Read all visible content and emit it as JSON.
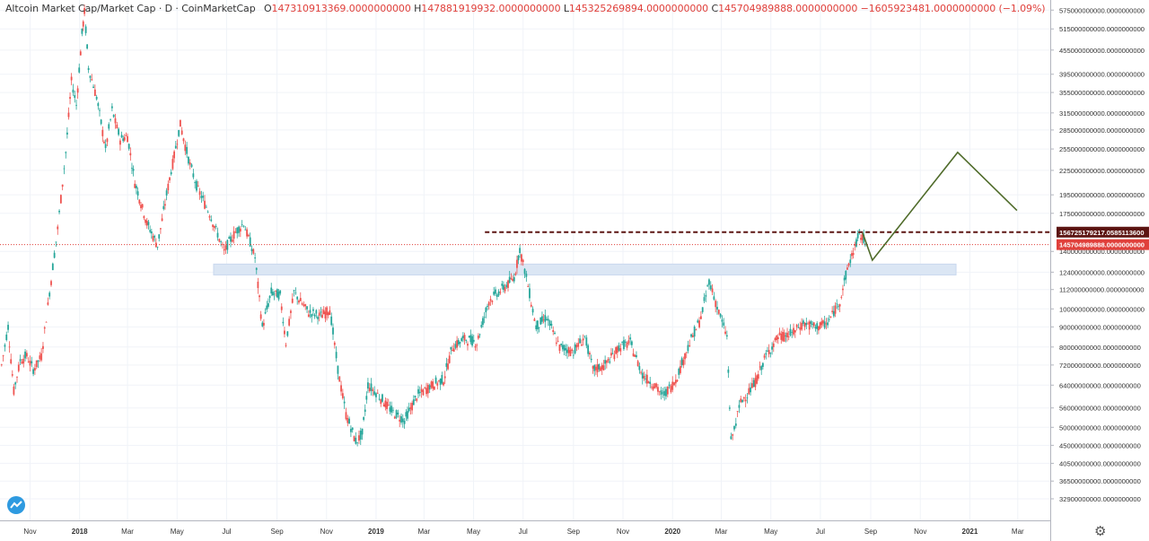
{
  "header": {
    "symbol": "Altcoin Market Cap/Market Cap",
    "interval": "D",
    "source": "CoinMarketCap",
    "open_label": "O",
    "open": "147310913369.0000000000",
    "high_label": "H",
    "high": "147881919932.0000000000",
    "low_label": "L",
    "low": "145325269894.0000000000",
    "close_label": "C",
    "close": "145704989888.0000000000",
    "change": "−1605923481.0000000000 (−1.09%)"
  },
  "colors": {
    "up": "#26a69a",
    "down": "#ef5350",
    "resistance": "#5c1512",
    "current_price": "#e0403b",
    "projection": "#4f6b2a",
    "zone": "#dbe6f4"
  },
  "icons": {
    "logo": "tradingview-logo-icon",
    "settings": "gear-icon"
  },
  "chart_data": {
    "type": "candlestick",
    "y_scale": "log",
    "ylim": [
      29000000000,
      610000000000
    ],
    "xlim": [
      "2017-09-25",
      "2021-04-10"
    ],
    "x_ticks": [
      {
        "date": "2017-11-01",
        "label": "Nov"
      },
      {
        "date": "2018-01-01",
        "label": "2018"
      },
      {
        "date": "2018-03-01",
        "label": "Mar"
      },
      {
        "date": "2018-05-01",
        "label": "May"
      },
      {
        "date": "2018-07-01",
        "label": "Jul"
      },
      {
        "date": "2018-09-01",
        "label": "Sep"
      },
      {
        "date": "2018-11-01",
        "label": "Nov"
      },
      {
        "date": "2019-01-01",
        "label": "2019"
      },
      {
        "date": "2019-03-01",
        "label": "Mar"
      },
      {
        "date": "2019-05-01",
        "label": "May"
      },
      {
        "date": "2019-07-01",
        "label": "Jul"
      },
      {
        "date": "2019-09-01",
        "label": "Sep"
      },
      {
        "date": "2019-11-01",
        "label": "Nov"
      },
      {
        "date": "2020-01-01",
        "label": "2020"
      },
      {
        "date": "2020-03-01",
        "label": "Mar"
      },
      {
        "date": "2020-05-01",
        "label": "May"
      },
      {
        "date": "2020-07-01",
        "label": "Jul"
      },
      {
        "date": "2020-09-01",
        "label": "Sep"
      },
      {
        "date": "2020-11-01",
        "label": "Nov"
      },
      {
        "date": "2021-01-01",
        "label": "2021"
      },
      {
        "date": "2021-03-01",
        "label": "Mar"
      }
    ],
    "y_ticks": [
      {
        "value": 575000000000,
        "label": "575000000000.0000000000"
      },
      {
        "value": 515000000000,
        "label": "515000000000.0000000000"
      },
      {
        "value": 455000000000,
        "label": "455000000000.0000000000"
      },
      {
        "value": 395000000000,
        "label": "395000000000.0000000000"
      },
      {
        "value": 355000000000,
        "label": "355000000000.0000000000"
      },
      {
        "value": 315000000000,
        "label": "315000000000.0000000000"
      },
      {
        "value": 285000000000,
        "label": "285000000000.0000000000"
      },
      {
        "value": 255000000000,
        "label": "255000000000.0000000000"
      },
      {
        "value": 225000000000,
        "label": "225000000000.0000000000"
      },
      {
        "value": 195000000000,
        "label": "195000000000.0000000000"
      },
      {
        "value": 175000000000,
        "label": "175000000000.0000000000"
      },
      {
        "value": 140000000000,
        "label": "140000000000.0000000000"
      },
      {
        "value": 124000000000,
        "label": "124000000000.0000000000"
      },
      {
        "value": 112000000000,
        "label": "112000000000.0000000000"
      },
      {
        "value": 100000000000,
        "label": "100000000000.0000000000"
      },
      {
        "value": 90000000000,
        "label": "90000000000.0000000000"
      },
      {
        "value": 80000000000,
        "label": "80000000000.0000000000"
      },
      {
        "value": 72000000000,
        "label": "72000000000.0000000000"
      },
      {
        "value": 64000000000,
        "label": "64000000000.0000000000"
      },
      {
        "value": 56000000000,
        "label": "56000000000.0000000000"
      },
      {
        "value": 50000000000,
        "label": "50000000000.0000000000"
      },
      {
        "value": 45000000000,
        "label": "45000000000.0000000000"
      },
      {
        "value": 40500000000,
        "label": "40500000000.0000000000"
      },
      {
        "value": 36500000000,
        "label": "36500000000.0000000000"
      },
      {
        "value": 32900000000,
        "label": "32900000000.0000000000"
      }
    ],
    "price_path": [
      [
        "2017-09-27",
        72000000000
      ],
      [
        "2017-10-05",
        90000000000
      ],
      [
        "2017-10-12",
        62000000000
      ],
      [
        "2017-10-20",
        74000000000
      ],
      [
        "2017-10-28",
        76000000000
      ],
      [
        "2017-11-05",
        70000000000
      ],
      [
        "2017-11-15",
        76000000000
      ],
      [
        "2017-11-25",
        110000000000
      ],
      [
        "2017-12-05",
        160000000000
      ],
      [
        "2017-12-15",
        250000000000
      ],
      [
        "2017-12-22",
        380000000000
      ],
      [
        "2017-12-28",
        330000000000
      ],
      [
        "2018-01-04",
        500000000000
      ],
      [
        "2018-01-07",
        570000000000
      ],
      [
        "2018-01-12",
        410000000000
      ],
      [
        "2018-01-22",
        345000000000
      ],
      [
        "2018-02-02",
        255000000000
      ],
      [
        "2018-02-10",
        320000000000
      ],
      [
        "2018-02-20",
        270000000000
      ],
      [
        "2018-03-01",
        275000000000
      ],
      [
        "2018-03-10",
        210000000000
      ],
      [
        "2018-03-25",
        165000000000
      ],
      [
        "2018-04-07",
        145000000000
      ],
      [
        "2018-04-20",
        205000000000
      ],
      [
        "2018-05-05",
        295000000000
      ],
      [
        "2018-05-15",
        240000000000
      ],
      [
        "2018-05-25",
        205000000000
      ],
      [
        "2018-06-10",
        175000000000
      ],
      [
        "2018-06-28",
        140000000000
      ],
      [
        "2018-07-10",
        155000000000
      ],
      [
        "2018-07-22",
        165000000000
      ],
      [
        "2018-08-05",
        135000000000
      ],
      [
        "2018-08-14",
        90000000000
      ],
      [
        "2018-08-25",
        110000000000
      ],
      [
        "2018-09-05",
        108000000000
      ],
      [
        "2018-09-12",
        82000000000
      ],
      [
        "2018-09-22",
        110000000000
      ],
      [
        "2018-10-10",
        98000000000
      ],
      [
        "2018-10-25",
        96000000000
      ],
      [
        "2018-11-05",
        100000000000
      ],
      [
        "2018-11-15",
        70000000000
      ],
      [
        "2018-11-25",
        54000000000
      ],
      [
        "2018-12-07",
        46000000000
      ],
      [
        "2018-12-15",
        48000000000
      ],
      [
        "2018-12-22",
        64000000000
      ],
      [
        "2019-01-05",
        60000000000
      ],
      [
        "2019-01-20",
        55000000000
      ],
      [
        "2019-02-05",
        52000000000
      ],
      [
        "2019-02-20",
        60000000000
      ],
      [
        "2019-03-10",
        64000000000
      ],
      [
        "2019-03-25",
        66000000000
      ],
      [
        "2019-04-05",
        80000000000
      ],
      [
        "2019-04-20",
        84000000000
      ],
      [
        "2019-05-05",
        82000000000
      ],
      [
        "2019-05-20",
        105000000000
      ],
      [
        "2019-06-05",
        112000000000
      ],
      [
        "2019-06-20",
        120000000000
      ],
      [
        "2019-06-27",
        142000000000
      ],
      [
        "2019-07-05",
        120000000000
      ],
      [
        "2019-07-17",
        90000000000
      ],
      [
        "2019-07-30",
        95000000000
      ],
      [
        "2019-08-15",
        80000000000
      ],
      [
        "2019-09-01",
        78000000000
      ],
      [
        "2019-09-15",
        85000000000
      ],
      [
        "2019-09-25",
        70000000000
      ],
      [
        "2019-10-10",
        72000000000
      ],
      [
        "2019-10-27",
        80000000000
      ],
      [
        "2019-11-10",
        82000000000
      ],
      [
        "2019-11-25",
        68000000000
      ],
      [
        "2019-12-10",
        64000000000
      ],
      [
        "2019-12-20",
        60000000000
      ],
      [
        "2020-01-05",
        66000000000
      ],
      [
        "2020-01-20",
        80000000000
      ],
      [
        "2020-02-05",
        95000000000
      ],
      [
        "2020-02-15",
        118000000000
      ],
      [
        "2020-02-27",
        98000000000
      ],
      [
        "2020-03-08",
        85000000000
      ],
      [
        "2020-03-13",
        46000000000
      ],
      [
        "2020-03-25",
        58000000000
      ],
      [
        "2020-04-10",
        64000000000
      ],
      [
        "2020-04-25",
        76000000000
      ],
      [
        "2020-05-10",
        85000000000
      ],
      [
        "2020-05-25",
        86000000000
      ],
      [
        "2020-06-10",
        92000000000
      ],
      [
        "2020-06-25",
        90000000000
      ],
      [
        "2020-07-10",
        92000000000
      ],
      [
        "2020-07-25",
        105000000000
      ],
      [
        "2020-08-05",
        130000000000
      ],
      [
        "2020-08-18",
        155000000000
      ],
      [
        "2020-08-27",
        146000000000
      ]
    ],
    "resistance_line": {
      "value": 156725179217.0585,
      "label": "156725179217.0585113600",
      "start": "2019-05-15",
      "end": "2021-04-10"
    },
    "current_price": {
      "value": 145704989888,
      "label": "145704989888.0000000000"
    },
    "support_zone": {
      "low": 122000000000,
      "high": 130000000000,
      "start": "2018-06-15",
      "end": "2020-12-15"
    },
    "projection": [
      [
        "2020-08-22",
        156000000000
      ],
      [
        "2020-09-03",
        133000000000
      ],
      [
        "2020-12-17",
        250000000000
      ],
      [
        "2021-02-28",
        178000000000
      ]
    ]
  }
}
